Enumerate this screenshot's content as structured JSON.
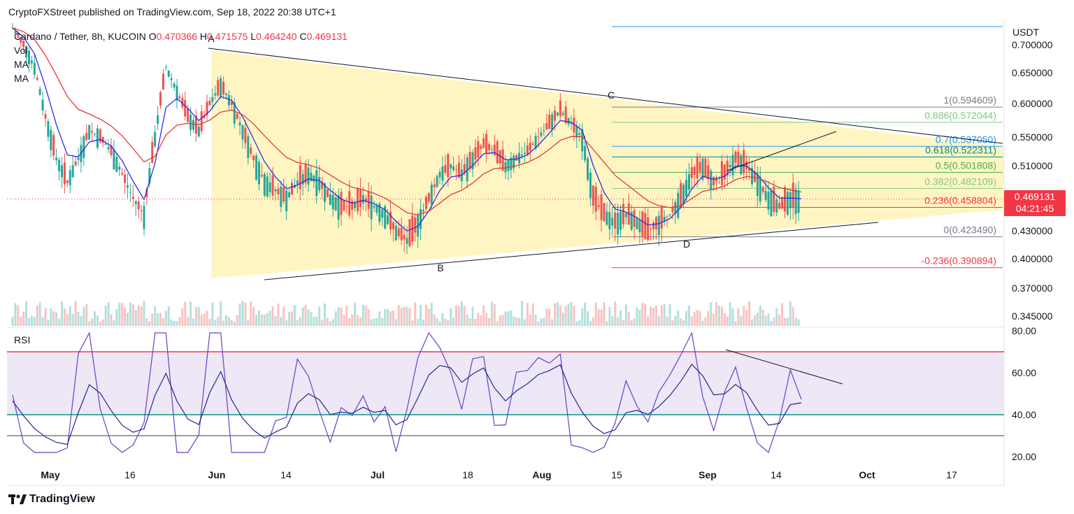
{
  "header": {
    "published": "CryptoFXStreet published on TradingView.com, Sep 18, 2022 20:38 UTC+1"
  },
  "legend": {
    "symbol": "Cardano / Tether, 8h, KUCOIN",
    "o_label": "O",
    "o": "0.470366",
    "h_label": "H",
    "h": "0.471575",
    "l_label": "L",
    "l": "0.464240",
    "c_label": "C",
    "c": "0.469131",
    "vol": "Vol",
    "ma1": "MA",
    "ma2": "MA"
  },
  "price_tag": {
    "price": "0.469131",
    "countdown": "04:21:45"
  },
  "rsi": {
    "label": "RSI"
  },
  "footer": {
    "brand": "TradingView"
  },
  "colors": {
    "up": "#26a69a",
    "down": "#ef5350",
    "ma_fast": "#2a2ee6",
    "ma_slow": "#e53935",
    "triangle": "#fff3b8",
    "rsi_band": "#ede7f6",
    "rsi_line": "#6a3fc6",
    "rsi_upper": "#f23645",
    "rsi_lower": "#089981"
  },
  "chart_data": {
    "type": "candlestick",
    "title": "Cardano / Tether, 8h, KUCOIN",
    "currency": "USDT",
    "y_axis": {
      "ticks": [
        "0.700000",
        "0.650000",
        "0.600000",
        "0.550000",
        "0.510000",
        "0.430000",
        "0.400000",
        "0.370000",
        "0.345000"
      ],
      "tick_values": [
        0.7,
        0.65,
        0.6,
        0.55,
        0.51,
        0.43,
        0.4,
        0.37,
        0.345
      ]
    },
    "x_axis": {
      "ticks": [
        "May",
        "16",
        "Jun",
        "14",
        "Jul",
        "18",
        "Aug",
        "15",
        "Sep",
        "14",
        "Oct",
        "17"
      ]
    },
    "last_close": 0.469131,
    "fibonacci": [
      {
        "label": "1(0.594609)",
        "value": 0.594609,
        "color": "#787b86"
      },
      {
        "label": "0.886(0.572044)",
        "value": 0.572044,
        "color": "#81c784"
      },
      {
        "label": "0.7(0.537050)",
        "value": 0.53705,
        "color": "#2196f3"
      },
      {
        "label": "0.618(0.522311)",
        "value": 0.522311,
        "color": "#00897b"
      },
      {
        "label": "0.5(0.501808)",
        "value": 0.501808,
        "color": "#4caf50"
      },
      {
        "label": "0.382(0.482109)",
        "value": 0.482109,
        "color": "#81c784"
      },
      {
        "label": "0.236(0.458804)",
        "value": 0.458804,
        "color": "#f23645"
      },
      {
        "label": "0(0.423490)",
        "value": 0.42349,
        "color": "#787b86"
      },
      {
        "label": "-0.236(0.390894)",
        "value": 0.390894,
        "color": "#f23645"
      }
    ],
    "pattern_points": [
      "A",
      "B",
      "C",
      "D"
    ],
    "rsi": {
      "ticks": [
        "80.00",
        "60.00",
        "40.00",
        "20.00"
      ],
      "tick_values": [
        80,
        60,
        40,
        20
      ],
      "upper": 70,
      "lower": 40,
      "floor": 30
    }
  }
}
